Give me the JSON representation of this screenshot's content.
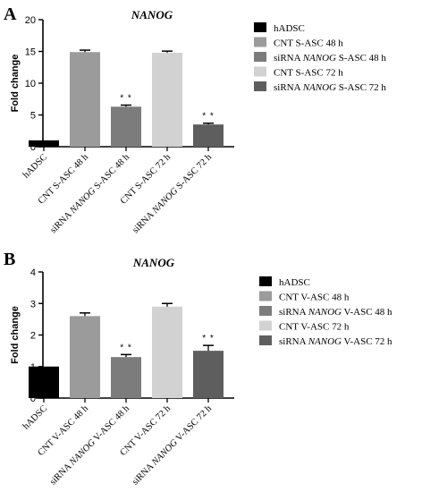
{
  "chart_data": [
    {
      "type": "bar",
      "panel_label": "A",
      "title": "NANOG",
      "xlabel": "",
      "ylabel": "Fold change",
      "ylim": [
        0,
        20
      ],
      "yticks": [
        0,
        5,
        10,
        15,
        20
      ],
      "categories": [
        [
          "hADSC"
        ],
        [
          "CNT S-ASC 48 h"
        ],
        [
          "siRNA ",
          "NANOG",
          " S-ASC 48 h"
        ],
        [
          "CNT S-ASC 72 h"
        ],
        [
          "siRNA ",
          "NANOG",
          " S-ASC 72 h"
        ]
      ],
      "legend": [
        [
          "hADSC"
        ],
        [
          "CNT S-ASC 48 h"
        ],
        [
          "siRNA ",
          "NANOG",
          " S-ASC 48 h"
        ],
        [
          "CNT S-ASC 72 h"
        ],
        [
          "siRNA ",
          "NANOG",
          " S-ASC 72 h"
        ]
      ],
      "values": [
        1.0,
        14.9,
        6.3,
        14.8,
        3.5
      ],
      "errors": [
        0.0,
        0.3,
        0.25,
        0.25,
        0.2
      ],
      "colors": [
        "#000000",
        "#9b9b9b",
        "#7c7c7c",
        "#d2d2d2",
        "#5e5e5e"
      ],
      "annotations": [
        "",
        "",
        "**",
        "",
        "**"
      ],
      "legend_position": "right",
      "grid": false
    },
    {
      "type": "bar",
      "panel_label": "B",
      "title": "NANOG",
      "xlabel": "",
      "ylabel": "Fold change",
      "ylim": [
        0,
        4
      ],
      "yticks": [
        0,
        1,
        2,
        3,
        4
      ],
      "categories": [
        [
          "hADSC"
        ],
        [
          "CNT V-ASC 48 h"
        ],
        [
          "siRNA ",
          "NANOG",
          " V-ASC 48 h"
        ],
        [
          "CNT V-ASC 72 h"
        ],
        [
          "siRNA ",
          "NANOG",
          " V-ASC 72 h"
        ]
      ],
      "legend": [
        [
          "hADSC"
        ],
        [
          "CNT V-ASC 48 h"
        ],
        [
          "siRNA ",
          "NANOG",
          " V-ASC 48 h"
        ],
        [
          "CNT V-ASC 72 h"
        ],
        [
          "siRNA ",
          "NANOG",
          " V-ASC 72 h"
        ]
      ],
      "values": [
        1.0,
        2.6,
        1.3,
        2.9,
        1.5
      ],
      "errors": [
        0.0,
        0.1,
        0.08,
        0.1,
        0.17
      ],
      "colors": [
        "#000000",
        "#9b9b9b",
        "#7c7c7c",
        "#d2d2d2",
        "#5e5e5e"
      ],
      "annotations": [
        "",
        "",
        "**",
        "",
        "**"
      ],
      "legend_position": "right",
      "grid": false
    }
  ]
}
